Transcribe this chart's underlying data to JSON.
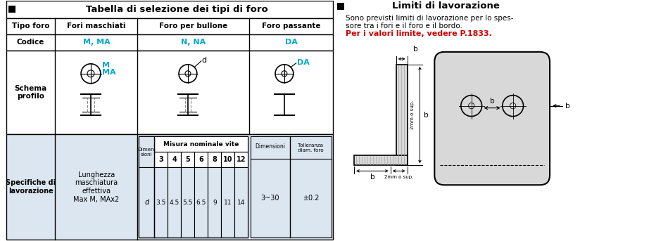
{
  "title_left": "Tabella di selezione dei tipi di foro",
  "title_right": "Limiti di lavorazione",
  "desc_line1": "Sono previsti limiti di lavorazione per lo spes-",
  "desc_line2": "sore tra i fori e il foro e il bordo.",
  "red_text": "Per i valori limite, vedere P.1833.",
  "col_headers": [
    "Tipo foro",
    "Fori maschiati",
    "Foro per bullone",
    "Foro passante"
  ],
  "code_row": [
    "Codice",
    "M, MA",
    "N, NA",
    "DA"
  ],
  "schema_label": "Schema\nprofilo",
  "spec_label": "Specifiche di\nlavorazione",
  "spec_text": "Lunghezza\nmaschiatura\neffettiva\nMax M, MAx2",
  "dim_header": "Misura nominale vite",
  "tol_col": "Tolleranza diam. foro",
  "size_row": [
    "3",
    "4",
    "5",
    "6",
    "8",
    "10",
    "12"
  ],
  "d_row": [
    "3.5",
    "4.5",
    "5.5",
    "6.5",
    "9",
    "11",
    "14"
  ],
  "dim_range": "3~30",
  "tol_val": "±0.2",
  "bg_color": "#ffffff",
  "table_bg": "#dce6f1",
  "cyan": "#00aacc",
  "red": "#cc0000",
  "black": "#000000"
}
